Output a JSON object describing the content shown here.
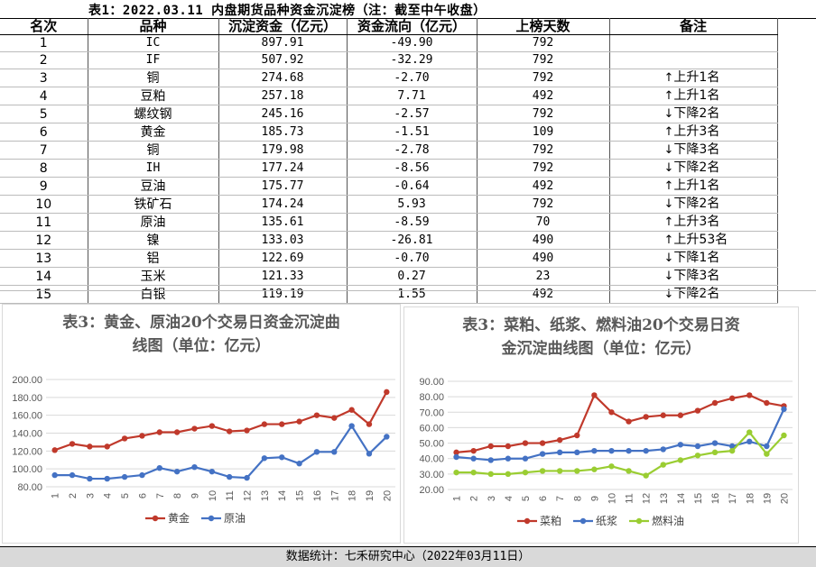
{
  "table": {
    "title": "表1：2022.03.11 内盘期货品种资金沉淀榜（注：截至中午收盘）",
    "headers": [
      "名次",
      "品种",
      "沉淀资金（亿元）",
      "资金流向（亿元）",
      "上榜天数",
      "备注"
    ],
    "rows": [
      {
        "rank": "1",
        "name": "IC",
        "capital": "897.91",
        "flow": "-49.90",
        "days": "792",
        "arrow": "",
        "note": ""
      },
      {
        "rank": "2",
        "name": "IF",
        "capital": "507.92",
        "flow": "-32.29",
        "days": "792",
        "arrow": "",
        "note": ""
      },
      {
        "rank": "3",
        "name": "铜",
        "capital": "274.68",
        "flow": "-2.70",
        "days": "792",
        "arrow": "↑",
        "note": "上升1名"
      },
      {
        "rank": "4",
        "name": "豆粕",
        "capital": "257.18",
        "flow": "7.71",
        "days": "492",
        "arrow": "↑",
        "note": "上升1名"
      },
      {
        "rank": "5",
        "name": "螺纹钢",
        "capital": "245.16",
        "flow": "-2.57",
        "days": "792",
        "arrow": "↓",
        "note": "下降2名"
      },
      {
        "rank": "6",
        "name": "黄金",
        "capital": "185.73",
        "flow": "-1.51",
        "days": "109",
        "arrow": "↑",
        "note": "上升3名"
      },
      {
        "rank": "7",
        "name": "铜",
        "capital": "179.98",
        "flow": "-2.78",
        "days": "792",
        "arrow": "↓",
        "note": "下降3名"
      },
      {
        "rank": "8",
        "name": "IH",
        "capital": "177.24",
        "flow": "-8.56",
        "days": "792",
        "arrow": "↓",
        "note": "下降2名"
      },
      {
        "rank": "9",
        "name": "豆油",
        "capital": "175.77",
        "flow": "-0.64",
        "days": "492",
        "arrow": "↑",
        "note": "上升1名"
      },
      {
        "rank": "10",
        "name": "铁矿石",
        "capital": "174.24",
        "flow": "5.93",
        "days": "792",
        "arrow": "↓",
        "note": "下降2名"
      },
      {
        "rank": "11",
        "name": "原油",
        "capital": "135.61",
        "flow": "-8.59",
        "days": "70",
        "arrow": "↑",
        "note": "上升3名"
      },
      {
        "rank": "12",
        "name": "镍",
        "capital": "133.03",
        "flow": "-26.81",
        "days": "490",
        "arrow": "↑",
        "note": "上升53名"
      },
      {
        "rank": "13",
        "name": "铝",
        "capital": "122.69",
        "flow": "-0.70",
        "days": "490",
        "arrow": "↓",
        "note": "下降1名"
      },
      {
        "rank": "14",
        "name": "玉米",
        "capital": "121.33",
        "flow": "0.27",
        "days": "23",
        "arrow": "↓",
        "note": "下降3名"
      },
      {
        "rank": "15",
        "name": "白银",
        "capital": "119.19",
        "flow": "1.55",
        "days": "492",
        "arrow": "↓",
        "note": "下降2名"
      }
    ]
  },
  "chart_data": [
    {
      "type": "line",
      "title_line1": "表3：黄金、原油20个交易日资金沉淀曲",
      "title_line2": "线图（单位：亿元）",
      "x": [
        "1",
        "2",
        "3",
        "4",
        "5",
        "6",
        "7",
        "8",
        "9",
        "10",
        "11",
        "12",
        "13",
        "14",
        "15",
        "16",
        "17",
        "18",
        "19",
        "20"
      ],
      "yticks": [
        "80.00",
        "100.00",
        "120.00",
        "140.00",
        "160.00",
        "180.00",
        "200.00"
      ],
      "ylim": [
        80,
        200
      ],
      "grid": true,
      "legend": "bottom",
      "series": [
        {
          "name": "黄金",
          "color": "#c0392b",
          "values": [
            121,
            128,
            125,
            125,
            134,
            137,
            141,
            141,
            145,
            148,
            142,
            143,
            150,
            150,
            153,
            160,
            157,
            166,
            150,
            186
          ]
        },
        {
          "name": "原油",
          "color": "#4472c4",
          "values": [
            93,
            93,
            89,
            89,
            91,
            93,
            101,
            97,
            102,
            97,
            91,
            90,
            112,
            113,
            106,
            119,
            119,
            148,
            117,
            136
          ]
        }
      ]
    },
    {
      "type": "line",
      "title_line1": "表3：菜粕、纸浆、燃料油20个交易日资",
      "title_line2": "金沉淀曲线图（单位：亿元）",
      "x": [
        "1",
        "2",
        "3",
        "4",
        "5",
        "6",
        "7",
        "8",
        "9",
        "10",
        "11",
        "12",
        "13",
        "14",
        "15",
        "16",
        "17",
        "18",
        "19",
        "20"
      ],
      "yticks": [
        "20.00",
        "30.00",
        "40.00",
        "50.00",
        "60.00",
        "70.00",
        "80.00",
        "90.00"
      ],
      "ylim": [
        20,
        90
      ],
      "grid": true,
      "legend": "bottom",
      "series": [
        {
          "name": "菜粕",
          "color": "#c0392b",
          "values": [
            44,
            45,
            48,
            48,
            50,
            50,
            52,
            55,
            81,
            70,
            64,
            67,
            68,
            68,
            71,
            76,
            79,
            81,
            76,
            74
          ]
        },
        {
          "name": "纸浆",
          "color": "#4472c4",
          "values": [
            41,
            40,
            39,
            40,
            40,
            43,
            44,
            44,
            45,
            45,
            45,
            45,
            46,
            49,
            48,
            50,
            48,
            51,
            48,
            72
          ]
        },
        {
          "name": "燃料油",
          "color": "#9acd32",
          "values": [
            31,
            31,
            30,
            30,
            31,
            32,
            32,
            32,
            33,
            35,
            32,
            29,
            36,
            39,
            42,
            44,
            45,
            57,
            43,
            55
          ]
        }
      ]
    }
  ],
  "footer": "数据统计：七禾研究中心（2022年03月11日）"
}
